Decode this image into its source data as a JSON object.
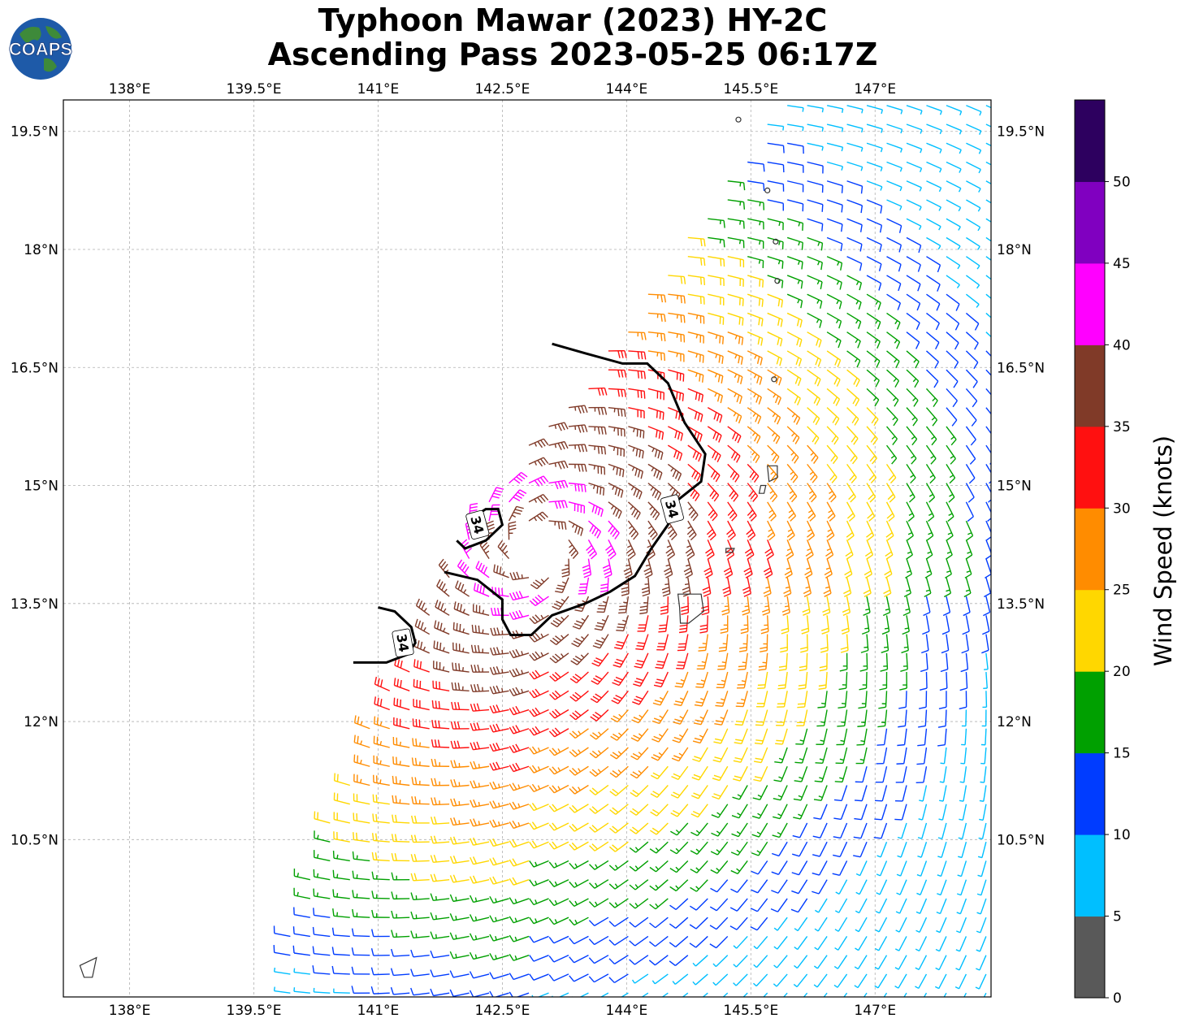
{
  "title": {
    "line1": "Typhoon Mawar (2023) HY-2C",
    "line2": "Ascending Pass 2023-05-25 06:17Z"
  },
  "logo": {
    "text": "COAPS"
  },
  "map": {
    "lon_range": [
      137.2,
      148.4
    ],
    "lat_range": [
      8.5,
      19.9
    ],
    "lon_ticks": [
      "138°E",
      "139.5°E",
      "141°E",
      "142.5°E",
      "144°E",
      "145.5°E",
      "147°E"
    ],
    "lat_ticks": [
      "19.5°N",
      "18°N",
      "16.5°N",
      "15°N",
      "13.5°N",
      "12°N",
      "10.5°N"
    ],
    "gridlines": true,
    "storm_center": {
      "lon": 142.9,
      "lat": 14.2
    },
    "contour_labels": [
      "34",
      "34",
      "34"
    ],
    "contour_level": 34
  },
  "colorbar": {
    "label": "Wind Speed (knots)",
    "ticks": [
      "0",
      "5",
      "10",
      "15",
      "20",
      "25",
      "30",
      "35",
      "40",
      "45",
      "50"
    ],
    "colors": [
      "#595959",
      "#00bfff",
      "#003cff",
      "#00a000",
      "#ffd700",
      "#ff8c00",
      "#ff1010",
      "#803a28",
      "#ff00ff",
      "#8000c0",
      "#2d005f"
    ]
  }
}
